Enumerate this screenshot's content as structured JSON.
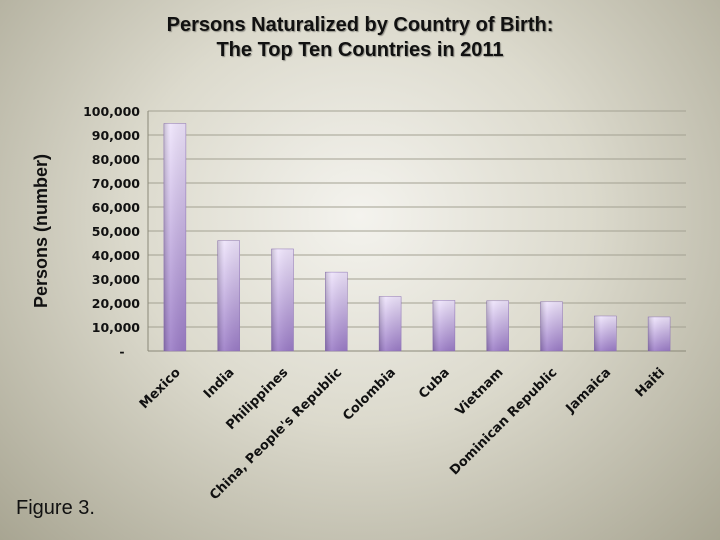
{
  "chart_data": {
    "type": "bar",
    "title_line1": "Persons Naturalized by Country of Birth:",
    "title_line2": "The Top Ten Countries in 2011",
    "xlabel": "",
    "ylabel": "Persons (number)",
    "ylim": [
      0,
      100000
    ],
    "yticks": [
      "-",
      "10,000",
      "20,000",
      "30,000",
      "40,000",
      "50,000",
      "60,000",
      "70,000",
      "80,000",
      "90,000",
      "100,000"
    ],
    "grid": true,
    "categories": [
      "Mexico",
      "India",
      "Philippines",
      "China, People's Republic",
      "Colombia",
      "Cuba",
      "Vietnam",
      "Dominican Republic",
      "Jamaica",
      "Haiti"
    ],
    "values": [
      94783,
      45985,
      42520,
      32864,
      22693,
      21071,
      20922,
      20508,
      14591,
      14191
    ],
    "bar_color_top": "#eee4fb",
    "bar_color_bottom": "#9a7bc6"
  },
  "caption": "Figure 3."
}
